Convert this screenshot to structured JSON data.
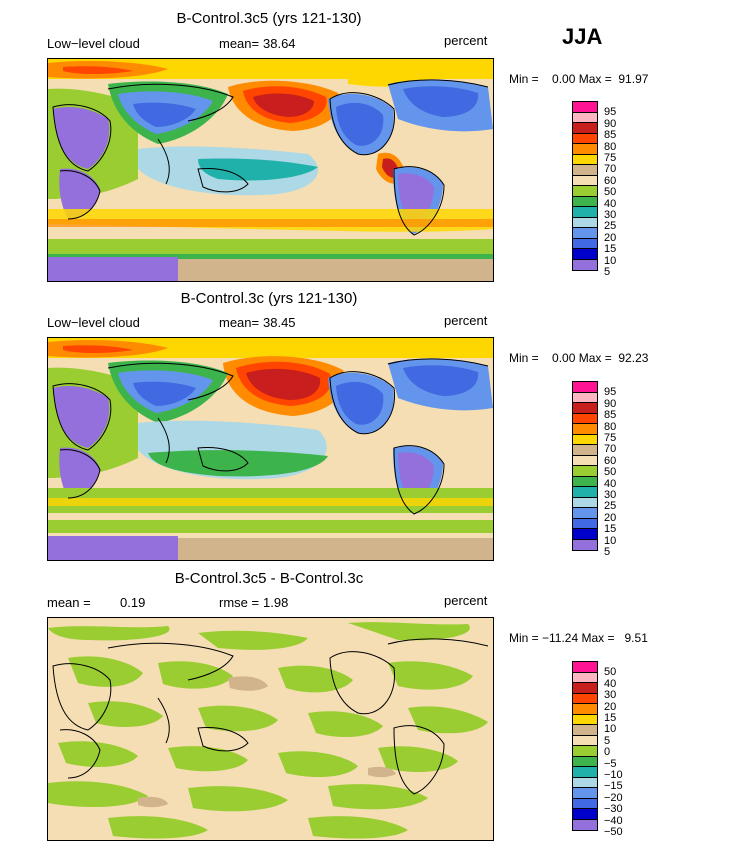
{
  "season": "JJA",
  "panels": [
    {
      "title": "B-Control.3c5 (yrs 121-130)",
      "left_label": "Low−level cloud",
      "stat_label": "mean=",
      "stat_value": "38.64",
      "units": "percent",
      "minmax": "Min =    0.00 Max =  91.97",
      "levels": [
        "95",
        "90",
        "85",
        "80",
        "75",
        "70",
        "60",
        "50",
        "40",
        "30",
        "25",
        "20",
        "15",
        "10",
        "5"
      ]
    },
    {
      "title": "B-Control.3c (yrs 121-130)",
      "left_label": "Low−level cloud",
      "stat_label": "mean=",
      "stat_value": "38.45",
      "units": "percent",
      "minmax": "Min =    0.00 Max =  92.23",
      "levels": [
        "95",
        "90",
        "85",
        "80",
        "75",
        "70",
        "60",
        "50",
        "40",
        "30",
        "25",
        "20",
        "15",
        "10",
        "5"
      ]
    },
    {
      "title": "B-Control.3c5 - B-Control.3c",
      "left_label": "mean =",
      "left_value": "0.19",
      "stat_label": "rmse =",
      "stat_value": "1.98",
      "units": "percent",
      "minmax": "Min = −11.24 Max =   9.51",
      "levels": [
        "50",
        "40",
        "30",
        "20",
        "15",
        "10",
        "5",
        "0",
        "−5",
        "−10",
        "−15",
        "−20",
        "−30",
        "−40",
        "−50"
      ]
    }
  ],
  "colors": {
    "scale": [
      "#ff1493",
      "#ffb6c1",
      "#c81e1e",
      "#ff4500",
      "#ff8c00",
      "#ffd700",
      "#d2b48c",
      "#f5deb3",
      "#9acd32",
      "#3cb44b",
      "#20b2aa",
      "#add8e6",
      "#6495ed",
      "#4169e1",
      "#0000cd",
      "#9370db"
    ],
    "diff_scale": [
      "#ff1493",
      "#ffb6c1",
      "#c81e1e",
      "#ff4500",
      "#ff8c00",
      "#ffd700",
      "#d2b48c",
      "#f5deb3",
      "#9acd32",
      "#3cb44b",
      "#20b2aa",
      "#add8e6",
      "#6495ed",
      "#4169e1",
      "#0000cd",
      "#9370db"
    ],
    "continent_outline": "#000000"
  }
}
